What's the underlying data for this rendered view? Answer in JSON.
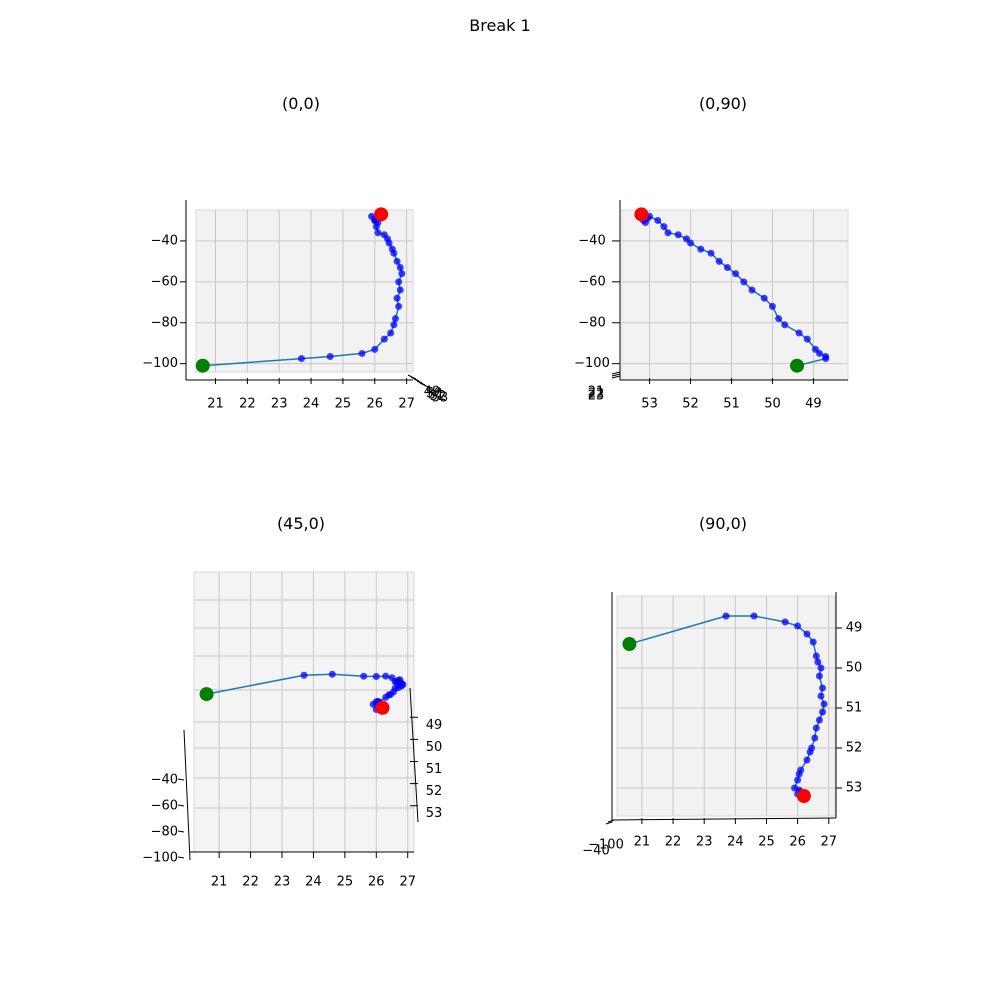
{
  "chart_data": {
    "type": "scatter",
    "title": "Break 1",
    "subplots": [
      {
        "title": "(0,0)",
        "x_ticks": [
          21,
          22,
          23,
          24,
          25,
          26,
          27
        ],
        "y_ticks": [
          49,
          50,
          51,
          52,
          53
        ],
        "z_ticks": [
          -40,
          -60,
          -80,
          -100
        ]
      },
      {
        "title": "(0,90)",
        "x_ticks": [
          21,
          22,
          23,
          24,
          25,
          26,
          27
        ],
        "y_ticks": [
          53,
          52,
          51,
          50,
          49
        ],
        "z_ticks": [
          -40,
          -60,
          -80,
          -100
        ]
      },
      {
        "title": "(45,0)",
        "x_ticks": [
          21,
          22,
          23,
          24,
          25,
          26,
          27
        ],
        "y_ticks": [
          49,
          50,
          51,
          52,
          53
        ],
        "z_ticks": [
          -40,
          -60,
          -80,
          -100
        ]
      },
      {
        "title": "(90,0)",
        "x_ticks": [
          21,
          22,
          23,
          24,
          25,
          26,
          27
        ],
        "y_ticks": [
          49,
          50,
          51,
          52,
          53
        ],
        "z_ticks": [
          -100,
          -40
        ]
      }
    ],
    "x_range": [
      20.2,
      27.2
    ],
    "y_range": [
      48.4,
      53.6
    ],
    "z_range": [
      -110,
      -20
    ],
    "track": {
      "line_color": "#1f77b4",
      "point_color": "#0000ff",
      "start_color": "#008000",
      "end_color": "#ff0000",
      "x": [
        20.6,
        23.7,
        24.6,
        25.6,
        26.0,
        26.3,
        26.5,
        26.6,
        26.65,
        26.75,
        26.7,
        26.8,
        26.75,
        26.85,
        26.8,
        26.7,
        26.6,
        26.55,
        26.45,
        26.4,
        26.3,
        26.1,
        26.05,
        26.0,
        25.9,
        26.05,
        26.1,
        26.0,
        26.2
      ],
      "y": [
        49.4,
        48.7,
        48.7,
        48.85,
        48.95,
        49.15,
        49.35,
        49.7,
        49.85,
        50.0,
        50.2,
        50.5,
        50.7,
        50.9,
        51.1,
        51.3,
        51.5,
        51.75,
        52.0,
        52.1,
        52.3,
        52.55,
        52.65,
        52.8,
        53.0,
        53.05,
        53.1,
        53.15,
        53.2
      ],
      "z": [
        -101,
        -97.5,
        -96.5,
        -95,
        -93,
        -88,
        -85,
        -81,
        -78,
        -72,
        -68,
        -64,
        -60,
        -56,
        -53,
        -50,
        -46,
        -44,
        -41,
        -39,
        -37,
        -36,
        -33,
        -30,
        -28,
        -29,
        -31,
        -30,
        -27
      ]
    }
  }
}
